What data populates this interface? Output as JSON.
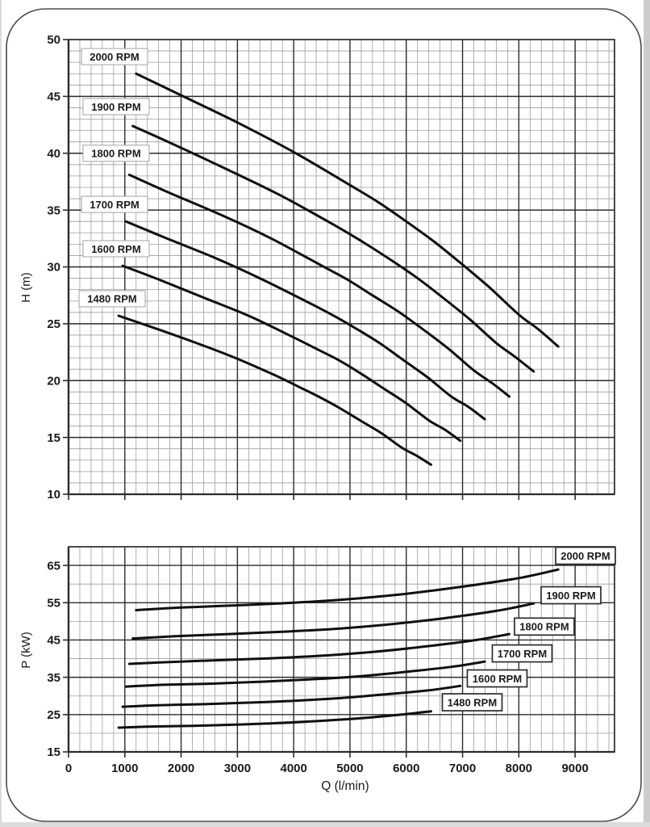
{
  "figure": {
    "description": "Pump performance curves at six rotational speeds",
    "x_axis_title": "Q (l/min)",
    "colors": {
      "curve": "#101010",
      "grid_major": "#2c2c2c",
      "grid_minor": "#9d9d9d",
      "plot_border": "#2c2c2c",
      "text": "#1a1a20",
      "frame_border": "#4a4a4a",
      "label_box_border_light": "#ababab",
      "label_box_border_dark": "#2b2b2b",
      "page_edge": "#cccccc"
    }
  },
  "chart_data": [
    {
      "type": "line",
      "title": "",
      "xlabel": "Q (l/min)",
      "ylabel": "H (m)",
      "xlim": [
        0,
        9700
      ],
      "ylim": [
        10,
        50
      ],
      "x_major_step": 1000,
      "x_minor_step": 200,
      "y_major_step": 5,
      "y_minor_step": 1,
      "grid": true,
      "x_tick_labels_visible": false,
      "x_tick_labels": [
        "0",
        "1000",
        "2000",
        "3000",
        "4000",
        "5000",
        "6000",
        "7000",
        "8000",
        "9000"
      ],
      "y_tick_labels": [
        "50",
        "45",
        "40",
        "35",
        "30",
        "25",
        "20",
        "15",
        "10"
      ],
      "legend_position": "boxes-left-inside",
      "series": [
        {
          "name": "2000 RPM",
          "label_anchor": [
            817,
            48.5
          ],
          "points": [
            [
              1200,
              47.0
            ],
            [
              2000,
              45.1
            ],
            [
              3000,
              42.7
            ],
            [
              4000,
              40.1
            ],
            [
              5000,
              37.2
            ],
            [
              5500,
              35.7
            ],
            [
              6000,
              34.0
            ],
            [
              6500,
              32.2
            ],
            [
              7000,
              30.2
            ],
            [
              7500,
              28.1
            ],
            [
              8000,
              25.8
            ],
            [
              8350,
              24.5
            ],
            [
              8700,
              23.0
            ]
          ]
        },
        {
          "name": "1900 RPM",
          "label_anchor": [
            845,
            44.1
          ],
          "points": [
            [
              1140,
              42.4
            ],
            [
              1900,
              40.7
            ],
            [
              2850,
              38.5
            ],
            [
              3800,
              36.2
            ],
            [
              4750,
              33.6
            ],
            [
              5225,
              32.2
            ],
            [
              5700,
              30.7
            ],
            [
              6175,
              29.1
            ],
            [
              6650,
              27.3
            ],
            [
              7125,
              25.4
            ],
            [
              7600,
              23.3
            ],
            [
              7930,
              22.1
            ],
            [
              8265,
              20.8
            ]
          ]
        },
        {
          "name": "1800 RPM",
          "label_anchor": [
            845,
            40.0
          ],
          "points": [
            [
              1080,
              38.1
            ],
            [
              1800,
              36.5
            ],
            [
              2700,
              34.6
            ],
            [
              3600,
              32.5
            ],
            [
              4500,
              30.1
            ],
            [
              4950,
              28.9
            ],
            [
              5400,
              27.5
            ],
            [
              5850,
              26.1
            ],
            [
              6300,
              24.5
            ],
            [
              6750,
              22.8
            ],
            [
              7200,
              20.9
            ],
            [
              7520,
              19.8
            ],
            [
              7830,
              18.6
            ]
          ]
        },
        {
          "name": "1700 RPM",
          "label_anchor": [
            817,
            35.5
          ],
          "points": [
            [
              1020,
              34.0
            ],
            [
              1700,
              32.6
            ],
            [
              2550,
              30.9
            ],
            [
              3400,
              29.0
            ],
            [
              4250,
              26.9
            ],
            [
              4675,
              25.8
            ],
            [
              5100,
              24.6
            ],
            [
              5525,
              23.3
            ],
            [
              5950,
              21.8
            ],
            [
              6375,
              20.3
            ],
            [
              6800,
              18.6
            ],
            [
              7100,
              17.7
            ],
            [
              7395,
              16.6
            ]
          ]
        },
        {
          "name": "1600 RPM",
          "label_anchor": [
            845,
            31.6
          ],
          "points": [
            [
              960,
              30.1
            ],
            [
              1600,
              28.9
            ],
            [
              2400,
              27.3
            ],
            [
              3200,
              25.7
            ],
            [
              4000,
              23.8
            ],
            [
              4400,
              22.8
            ],
            [
              4800,
              21.8
            ],
            [
              5200,
              20.6
            ],
            [
              5600,
              19.3
            ],
            [
              6000,
              18.0
            ],
            [
              6400,
              16.5
            ],
            [
              6680,
              15.7
            ],
            [
              6960,
              14.7
            ]
          ]
        },
        {
          "name": "1480 RPM",
          "label_anchor": [
            774,
            27.2
          ],
          "points": [
            [
              890,
              25.7
            ],
            [
              1480,
              24.7
            ],
            [
              2220,
              23.4
            ],
            [
              2960,
              22.0
            ],
            [
              3700,
              20.4
            ],
            [
              4070,
              19.5
            ],
            [
              4440,
              18.6
            ],
            [
              4810,
              17.6
            ],
            [
              5180,
              16.5
            ],
            [
              5550,
              15.4
            ],
            [
              5920,
              14.1
            ],
            [
              6180,
              13.4
            ],
            [
              6440,
              12.6
            ]
          ]
        }
      ]
    },
    {
      "type": "line",
      "title": "",
      "xlabel": "Q (l/min)",
      "ylabel": "P (kW)",
      "xlim": [
        0,
        9700
      ],
      "ylim": [
        15,
        70
      ],
      "x_major_step": 1000,
      "x_minor_step": 200,
      "y_major_step": 10,
      "y_minor_step": 5,
      "grid": true,
      "x_tick_labels_visible": true,
      "x_tick_labels": [
        "0",
        "1000",
        "2000",
        "3000",
        "4000",
        "5000",
        "6000",
        "7000",
        "8000",
        "9000"
      ],
      "y_tick_labels": [
        "65",
        "55",
        "45",
        "35",
        "25",
        "15"
      ],
      "legend_position": "boxes-right-inside",
      "series": [
        {
          "name": "2000 RPM",
          "label_anchor": [
            9184,
            67.6
          ],
          "points": [
            [
              1200,
              53.0
            ],
            [
              2000,
              53.7
            ],
            [
              3000,
              54.3
            ],
            [
              4000,
              55.0
            ],
            [
              5000,
              56.0
            ],
            [
              6000,
              57.4
            ],
            [
              7000,
              59.3
            ],
            [
              8000,
              61.6
            ],
            [
              8700,
              63.9
            ]
          ]
        },
        {
          "name": "1900 RPM",
          "label_anchor": [
            8926,
            57.0
          ],
          "points": [
            [
              1140,
              45.4
            ],
            [
              1900,
              46.0
            ],
            [
              2850,
              46.6
            ],
            [
              3800,
              47.2
            ],
            [
              4750,
              48.0
            ],
            [
              5700,
              49.2
            ],
            [
              6650,
              50.8
            ],
            [
              7600,
              52.8
            ],
            [
              8265,
              54.8
            ]
          ]
        },
        {
          "name": "1800 RPM",
          "label_anchor": [
            8453,
            48.6
          ],
          "points": [
            [
              1080,
              38.6
            ],
            [
              1800,
              39.1
            ],
            [
              2700,
              39.6
            ],
            [
              3600,
              40.1
            ],
            [
              4500,
              40.8
            ],
            [
              5400,
              41.8
            ],
            [
              6300,
              43.2
            ],
            [
              7200,
              44.9
            ],
            [
              7830,
              46.6
            ]
          ]
        },
        {
          "name": "1700 RPM",
          "label_anchor": [
            8059,
            41.4
          ],
          "points": [
            [
              1020,
              32.5
            ],
            [
              1700,
              33.0
            ],
            [
              2550,
              33.3
            ],
            [
              3400,
              33.8
            ],
            [
              4250,
              34.4
            ],
            [
              5100,
              35.2
            ],
            [
              5950,
              36.4
            ],
            [
              6800,
              37.8
            ],
            [
              7395,
              39.2
            ]
          ]
        },
        {
          "name": "1600 RPM",
          "label_anchor": [
            7615,
            34.7
          ],
          "points": [
            [
              960,
              27.1
            ],
            [
              1600,
              27.5
            ],
            [
              2400,
              27.8
            ],
            [
              3200,
              28.2
            ],
            [
              4000,
              28.7
            ],
            [
              4800,
              29.4
            ],
            [
              5600,
              30.4
            ],
            [
              6400,
              31.5
            ],
            [
              6960,
              32.7
            ]
          ]
        },
        {
          "name": "1480 RPM",
          "label_anchor": [
            7171,
            28.3
          ],
          "points": [
            [
              890,
              21.5
            ],
            [
              1480,
              21.8
            ],
            [
              2220,
              22.0
            ],
            [
              2960,
              22.3
            ],
            [
              3700,
              22.7
            ],
            [
              4440,
              23.3
            ],
            [
              5180,
              24.0
            ],
            [
              5920,
              25.0
            ],
            [
              6440,
              25.9
            ]
          ]
        }
      ]
    }
  ]
}
